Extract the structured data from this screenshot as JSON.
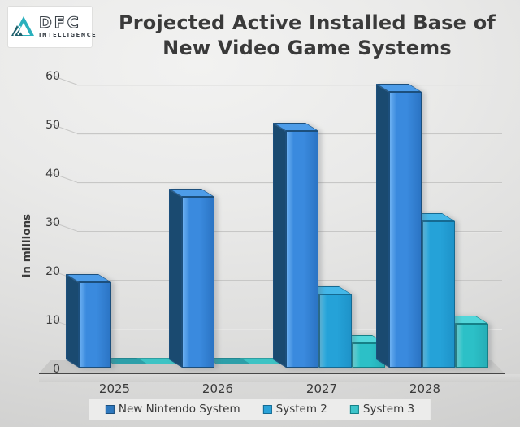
{
  "logo": {
    "brand": "DFC",
    "sub": "INTELLIGENCE"
  },
  "title": {
    "line1": "Projected Active Installed Base of",
    "line2": "New Video Game Systems"
  },
  "chart_data": {
    "type": "bar",
    "style": "3d-clustered-column",
    "title": "Projected Active Installed Base of New Video Game Systems",
    "categories": [
      "2025",
      "2026",
      "2027",
      "2028"
    ],
    "series": [
      {
        "name": "New Nintendo System",
        "values": [
          17.5,
          35,
          48.5,
          56.5
        ],
        "color_front": "#3a8ade",
        "color_front_light": "#6cb0f1",
        "color_front_dark": "#2b74c4",
        "color_top": "#4d9ce8",
        "color_side": "#1a4a70",
        "color_border": "#1c4f7c",
        "legend_swatch": "#2e78be",
        "color_flat": "#2f9fb5"
      },
      {
        "name": "System 2",
        "values": [
          0,
          0,
          15,
          30
        ],
        "color_front": "#25a2d8",
        "color_front_light": "#55c3ee",
        "color_front_dark": "#1e93c9",
        "color_top": "#44b7e8",
        "color_side": "#0f567e",
        "color_border": "#156a92",
        "legend_swatch": "#2aa2d8",
        "color_flat": "#2d9fa9"
      },
      {
        "name": "System 3",
        "values": [
          0,
          0,
          5,
          9
        ],
        "color_front": "#2cc0c7",
        "color_front_light": "#66dee2",
        "color_front_dark": "#25adb6",
        "color_top": "#52d6da",
        "color_side": "#117078",
        "color_border": "#158087",
        "legend_swatch": "#3cc4ca",
        "color_flat": "#3dc3c4"
      }
    ],
    "xlabel": "",
    "ylabel": "in millions",
    "yticks": [
      0,
      10,
      20,
      30,
      40,
      50,
      60
    ],
    "ylim": [
      0,
      60
    ],
    "grid": true,
    "legend_position": "bottom"
  }
}
